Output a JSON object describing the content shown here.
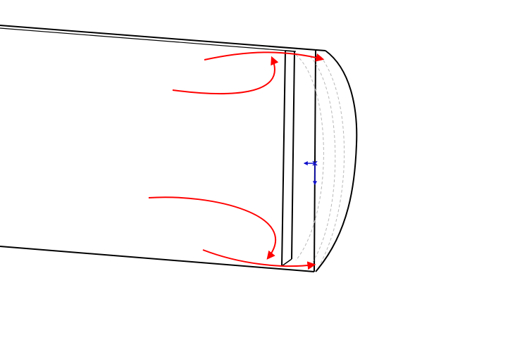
{
  "colors": {
    "background": "#ffffff",
    "outline": "#000000",
    "flow_arrow": "#ff0000",
    "axis_triad": "#1010cc",
    "hidden_edge": "#b8b8b8"
  },
  "icons": {
    "flow_arrow": "curved-arrow",
    "axis_triad": "coordinate-triad-icon"
  }
}
